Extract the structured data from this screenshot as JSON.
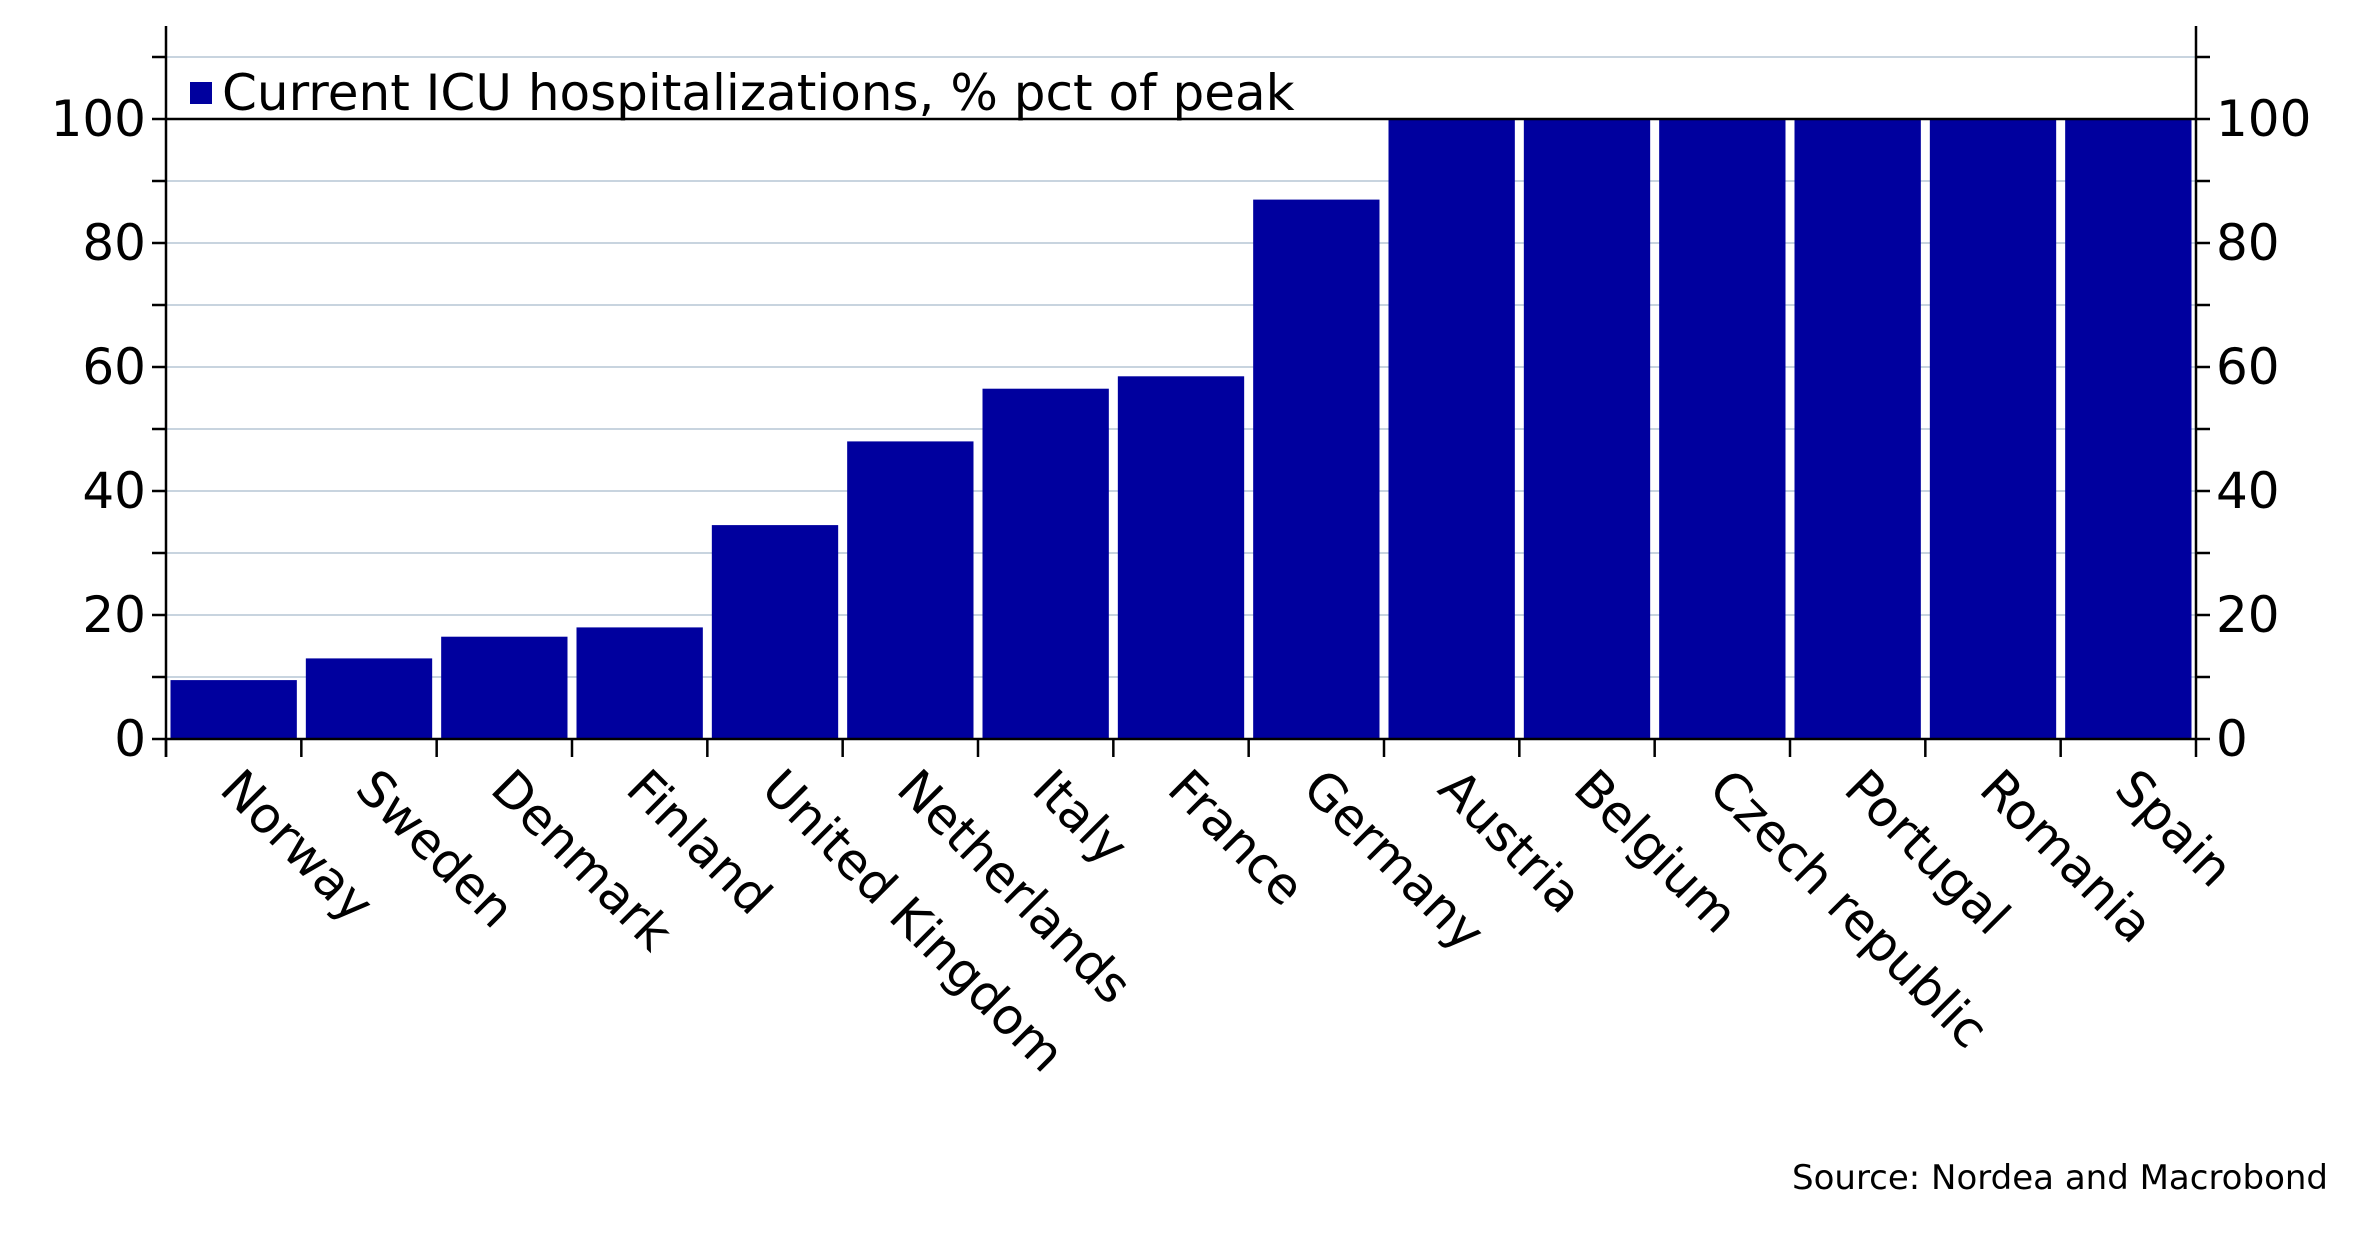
{
  "chart_data": {
    "type": "bar",
    "categories": [
      "Norway",
      "Sweden",
      "Denmark",
      "Finland",
      "United Kingdom",
      "Netherlands",
      "Italy",
      "France",
      "Germany",
      "Austria",
      "Belgium",
      "Czech republic",
      "Portugal",
      "Romania",
      "Spain"
    ],
    "series": [
      {
        "name": "Current ICU hospitalizations, % pct of peak",
        "values": [
          9.5,
          13,
          16.5,
          18,
          34.5,
          48,
          56.5,
          58.5,
          87,
          100,
          100,
          100,
          100,
          100,
          100
        ]
      }
    ],
    "ylim": [
      0,
      115
    ],
    "yticks": [
      0,
      20,
      40,
      60,
      80,
      100
    ],
    "y_axis_both_sides": true,
    "grid": true,
    "legend_position": "top-left",
    "colors": {
      "bar": "#00009E",
      "grid": "#c8d4df",
      "axis": "#000000"
    }
  },
  "source_text": "Source: Nordea and Macrobond"
}
